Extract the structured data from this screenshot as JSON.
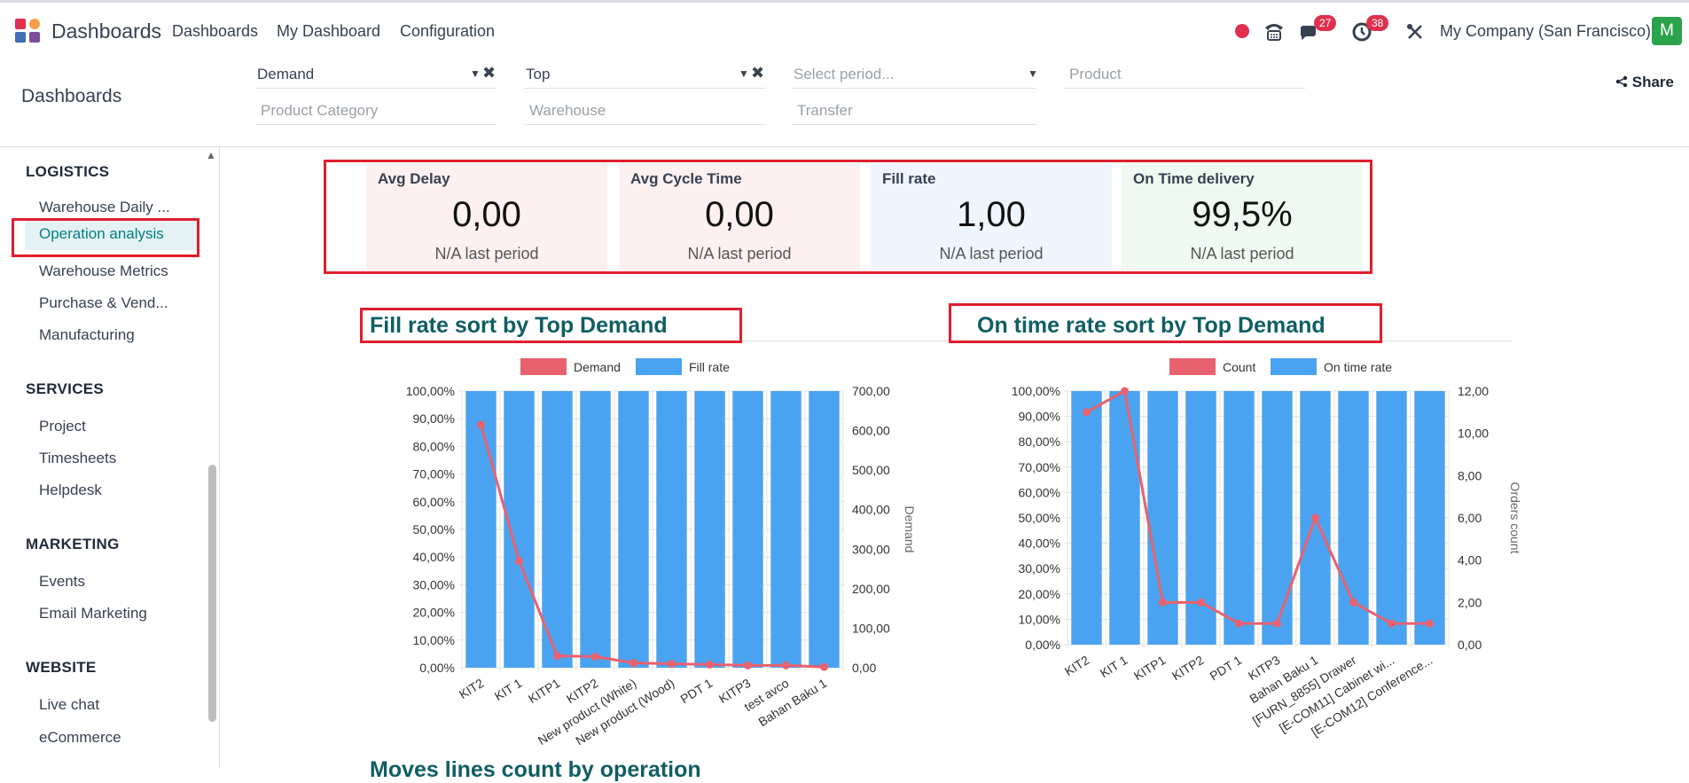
{
  "topnav": {
    "app_name": "Dashboards",
    "menus": [
      "Dashboards",
      "My Dashboard",
      "Configuration"
    ],
    "icons": [
      "record-icon",
      "phone-icon",
      "chat-icon",
      "activity-clock-icon",
      "tools-icon"
    ],
    "chat_badge": "27",
    "activity_badge": "38",
    "company": "My Company (San Francisco)",
    "user_initial": "M",
    "colors": {
      "record": "#e0304e",
      "avatar": "#2ba24c"
    }
  },
  "control_panel": {
    "breadcrumb": "Dashboards",
    "filters": {
      "demand": "Demand",
      "top": "Top",
      "period_placeholder": "Select period...",
      "product_placeholder": "Product",
      "product_category_placeholder": "Product Category",
      "warehouse_placeholder": "Warehouse",
      "transfer_placeholder": "Transfer"
    },
    "share_label": "Share"
  },
  "sidebar": {
    "sections": [
      {
        "title": "LOGISTICS",
        "items": [
          "Warehouse Daily ...",
          "Operation analysis",
          "Warehouse Metrics",
          "Purchase & Vend...",
          "Manufacturing"
        ]
      },
      {
        "title": "SERVICES",
        "items": [
          "Project",
          "Timesheets",
          "Helpdesk"
        ]
      },
      {
        "title": "MARKETING",
        "items": [
          "Events",
          "Email Marketing"
        ]
      },
      {
        "title": "WEBSITE",
        "items": [
          "Live chat",
          "eCommerce"
        ]
      }
    ],
    "active_item": "Operation analysis"
  },
  "kpis": [
    {
      "label": "Avg  Delay",
      "value": "0,00",
      "sub": "N/A last period",
      "bg": "#fdf0f0"
    },
    {
      "label": "Avg Cycle Time",
      "value": "0,00",
      "sub": "N/A last period",
      "bg": "#fdf0f0"
    },
    {
      "label": "Fill rate",
      "value": "1,00",
      "sub": "N/A last period",
      "bg": "#eef5fd"
    },
    {
      "label": "On Time delivery",
      "value": "99,5%",
      "sub": "N/A last period",
      "bg": "#eefaf1"
    }
  ],
  "chart_data": [
    {
      "type": "bar",
      "title": "Fill rate sort by Top Demand",
      "categories": [
        "KIT2",
        "KIT 1",
        "KITP1",
        "KITP2",
        "New product (White)",
        "New product (Wood)",
        "PDT 1",
        "KITP3",
        "test avco",
        "Bahan Baku 1"
      ],
      "series": [
        {
          "name": "Fill rate",
          "type": "bar",
          "axis": "left",
          "values": [
            100,
            100,
            100,
            100,
            100,
            100,
            100,
            100,
            100,
            100
          ],
          "color": "#4aa3f0"
        },
        {
          "name": "Demand",
          "type": "line",
          "axis": "right",
          "values": [
            615,
            270,
            30,
            28,
            12,
            10,
            8,
            6,
            6,
            2
          ],
          "color": "#e8616f"
        }
      ],
      "y_left": {
        "ticks": [
          "0,00%",
          "10,00%",
          "20,00%",
          "30,00%",
          "40,00%",
          "50,00%",
          "60,00%",
          "70,00%",
          "80,00%",
          "90,00%",
          "100,00%"
        ],
        "min": 0,
        "max": 100
      },
      "y_right": {
        "label": "Demand",
        "ticks": [
          "0,00",
          "100,00",
          "200,00",
          "300,00",
          "400,00",
          "500,00",
          "600,00",
          "700,00"
        ],
        "min": 0,
        "max": 700
      },
      "legend_position": "top"
    },
    {
      "type": "bar",
      "title": "On time rate sort by Top Demand",
      "categories": [
        "KIT2",
        "KIT 1",
        "KITP1",
        "KITP2",
        "PDT 1",
        "KITP3",
        "Bahan Baku 1",
        "[FURN_8855] Drawer",
        "[E-COM11] Cabinet wi...",
        "[E-COM12] Conference..."
      ],
      "series": [
        {
          "name": "On time rate",
          "type": "bar",
          "axis": "left",
          "values": [
            100,
            100,
            100,
            100,
            100,
            100,
            100,
            100,
            100,
            100
          ],
          "color": "#4aa3f0"
        },
        {
          "name": "Count",
          "type": "line",
          "axis": "right",
          "values": [
            11,
            12,
            2,
            2,
            1,
            1,
            6,
            2,
            1,
            1
          ],
          "color": "#e8616f"
        }
      ],
      "y_left": {
        "ticks": [
          "0,00%",
          "10,00%",
          "20,00%",
          "30,00%",
          "40,00%",
          "50,00%",
          "60,00%",
          "70,00%",
          "80,00%",
          "90,00%",
          "100,00%"
        ],
        "min": 0,
        "max": 100
      },
      "y_right": {
        "label": "Orders count",
        "ticks": [
          "0,00",
          "2,00",
          "4,00",
          "6,00",
          "8,00",
          "10,00",
          "12,00"
        ],
        "min": 0,
        "max": 12
      },
      "legend_position": "top"
    }
  ],
  "next_section_title": "Moves lines count by operation"
}
